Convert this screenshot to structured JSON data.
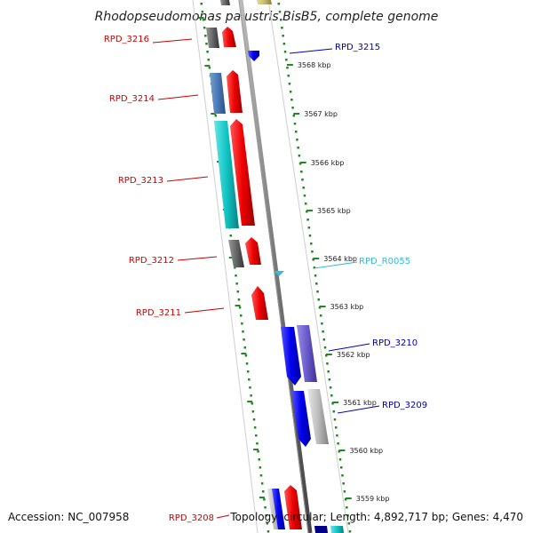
{
  "map": {
    "title": "Rhodopseudomonas palustris BisB5, complete genome",
    "accession": "Accession: NC_007958",
    "summary": "Topology: circular; Length: 4,892,717 bp; Genes: 4,470"
  },
  "colors": {
    "forward_label": "#cc0000",
    "reverse_label": "#0000bb",
    "rna_label": "#33bbdd",
    "tick": "#228822",
    "backbone": "#888888"
  },
  "ruler": [
    {
      "label": "3568 kbp"
    },
    {
      "label": "3567 kbp"
    },
    {
      "label": "3566 kbp"
    },
    {
      "label": "3565 kbp"
    },
    {
      "label": "3564 kbp"
    },
    {
      "label": "3563 kbp"
    },
    {
      "label": "3562 kbp"
    },
    {
      "label": "3561 kbp"
    },
    {
      "label": "3560 kbp"
    },
    {
      "label": "3559 kbp"
    }
  ],
  "gene_labels": [
    {
      "text": "RPD_3216",
      "strand": "forward"
    },
    {
      "text": "RPD_3215",
      "strand": "reverse"
    },
    {
      "text": "RPD_3214",
      "strand": "forward"
    },
    {
      "text": "RPD_3213",
      "strand": "forward"
    },
    {
      "text": "RPD_3212",
      "strand": "forward"
    },
    {
      "text": "RPD_R0055",
      "strand": "rna"
    },
    {
      "text": "RPD_3211",
      "strand": "forward"
    },
    {
      "text": "RPD_3210",
      "strand": "reverse"
    },
    {
      "text": "RPD_3209",
      "strand": "reverse"
    },
    {
      "text": "RPD_3208",
      "strand": "forward"
    }
  ]
}
